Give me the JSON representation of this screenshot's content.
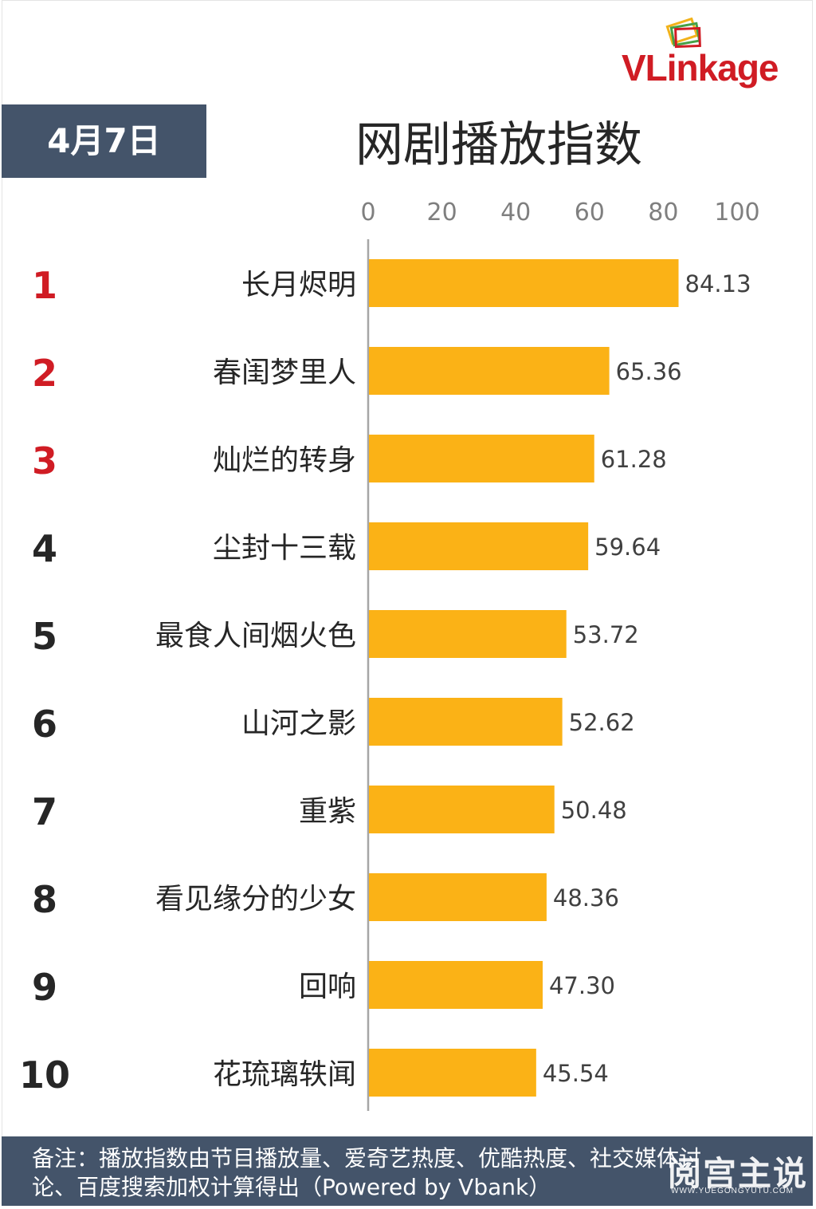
{
  "brand": {
    "name": "VLinkage"
  },
  "date_label": "4月7日",
  "chart_data": {
    "type": "bar",
    "orientation": "horizontal",
    "title": "网剧播放指数",
    "xlim": [
      0,
      100
    ],
    "ticks": [
      0,
      20,
      40,
      60,
      80,
      100
    ],
    "grid": false,
    "bar_color": "#fbb216",
    "rank_colors": {
      "top3": "#d01c24",
      "other": "#262626"
    },
    "ranks": [
      "1",
      "2",
      "3",
      "4",
      "5",
      "6",
      "7",
      "8",
      "9",
      "10"
    ],
    "categories": [
      "长月烬明",
      "春闺梦里人",
      "灿烂的转身",
      "尘封十三载",
      "最食人间烟火色",
      "山河之影",
      "重紫",
      "看见缘分的少女",
      "回响",
      "花琉璃轶闻"
    ],
    "values": [
      84.13,
      65.36,
      61.28,
      59.64,
      53.72,
      52.62,
      50.48,
      48.36,
      47.3,
      45.54
    ],
    "value_labels": [
      "84.13",
      "65.36",
      "61.28",
      "59.64",
      "53.72",
      "52.62",
      "50.48",
      "48.36",
      "47.30",
      "45.54"
    ]
  },
  "footer": {
    "note_line1": "备注：播放指数由节目播放量、爱奇艺热度、优酷热度、社交媒体讨",
    "note_line2": "论、百度搜索加权计算得出（Powered by Vbank）"
  },
  "watermark": {
    "cn": "阅宫主说",
    "en": "WWW.YUEGONGYUTU.COM"
  }
}
